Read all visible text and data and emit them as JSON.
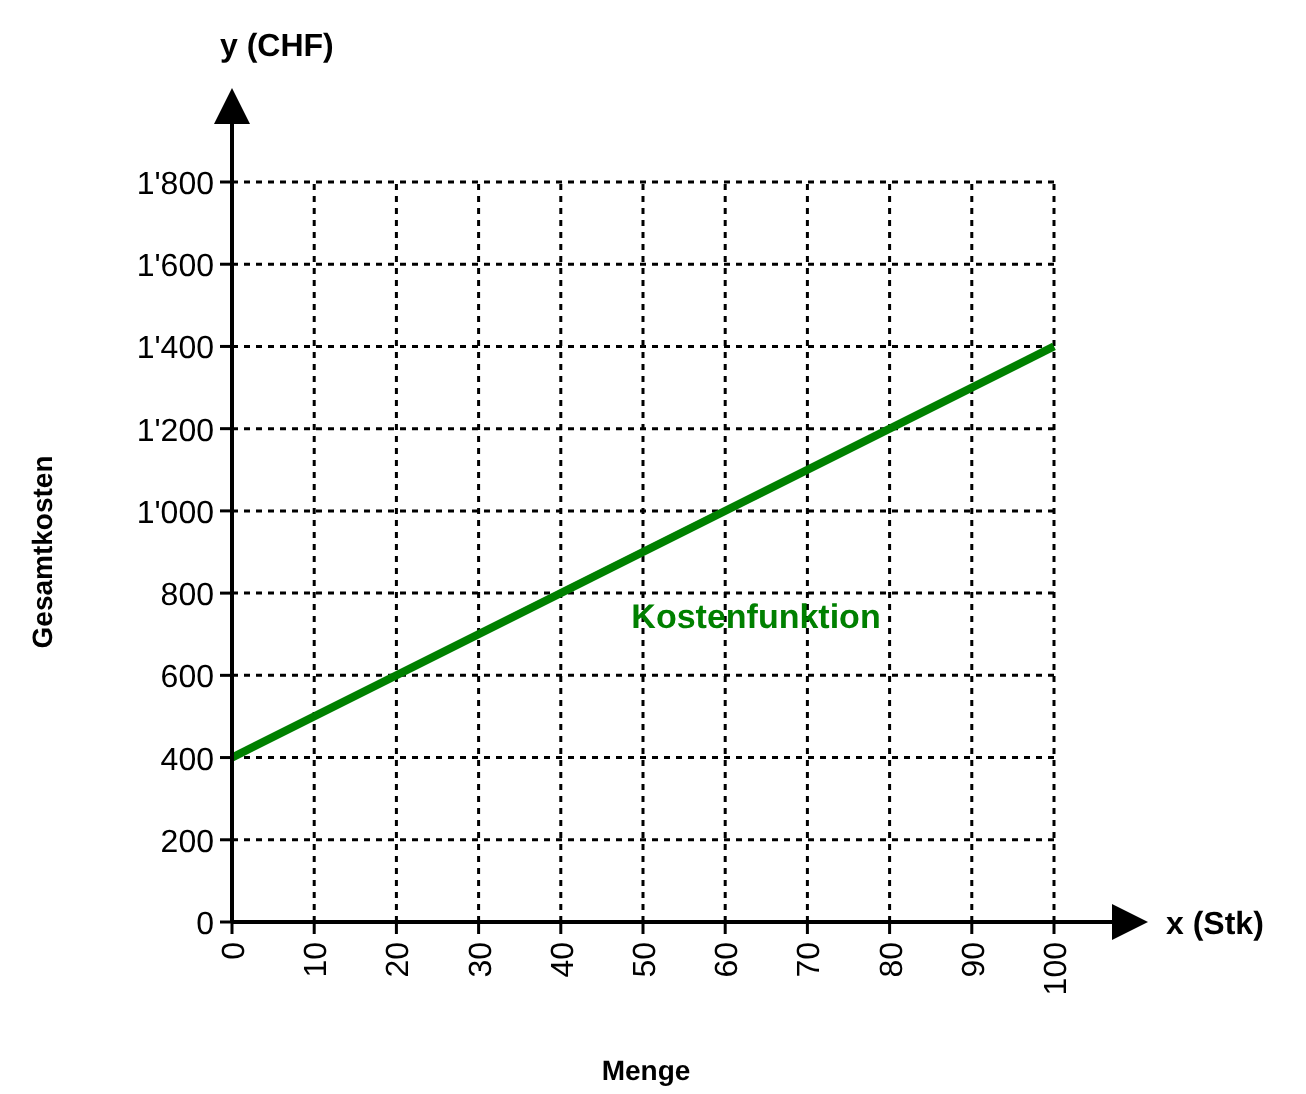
{
  "chart_data": {
    "type": "line",
    "xlabel": "Menge",
    "ylabel": "Gesamtkosten",
    "annotations": [
      "y (CHF)",
      "x (Stk)"
    ],
    "x": [
      0,
      100
    ],
    "series": [
      {
        "name": "Kostenfunktion",
        "color": "#008000",
        "values": [
          400,
          1400
        ]
      }
    ],
    "xlim": [
      0,
      100
    ],
    "xticks": [
      0,
      10,
      20,
      30,
      40,
      50,
      60,
      70,
      80,
      90,
      100
    ],
    "ylim": [
      0,
      1800
    ],
    "yticks": [
      0,
      200,
      400,
      600,
      800,
      {
        "value": 1000,
        "label": "1'000"
      },
      {
        "value": 1200,
        "label": "1'200"
      },
      {
        "value": 1400,
        "label": "1'400"
      },
      {
        "value": 1600,
        "label": "1'600"
      },
      {
        "value": 1800,
        "label": "1'800"
      }
    ],
    "grid": true,
    "marker": "none",
    "line_style": "solid"
  }
}
